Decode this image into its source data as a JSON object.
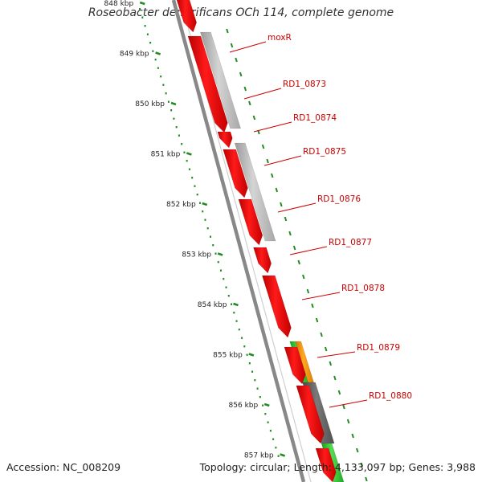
{
  "title": "Roseobacter denitrificans OCh 114, complete genome",
  "footer": {
    "accession": "Accession: NC_008209",
    "summary": "Topology: circular; Length: 4,133,097 bp; Genes: 3,988"
  },
  "ruler": [
    "848 kbp",
    "849 kbp",
    "850 kbp",
    "851 kbp",
    "852 kbp",
    "853 kbp",
    "854 kbp",
    "855 kbp",
    "856 kbp",
    "857 kbp"
  ],
  "genes": [
    "moxR",
    "RD1_0873",
    "RD1_0874",
    "RD1_0875",
    "RD1_0876",
    "RD1_0877",
    "RD1_0878",
    "RD1_0879",
    "RD1_0880"
  ],
  "colors": {
    "forward_gene": "#ff0000",
    "label": "#cc0000",
    "ruler_tick": "#228b22",
    "backbone": "#888888",
    "light_gray_track": "#bdbdbd",
    "dark_gray_track": "#6a6a6a",
    "green_track": "#33cc33",
    "orange_track": "#ff9900"
  }
}
